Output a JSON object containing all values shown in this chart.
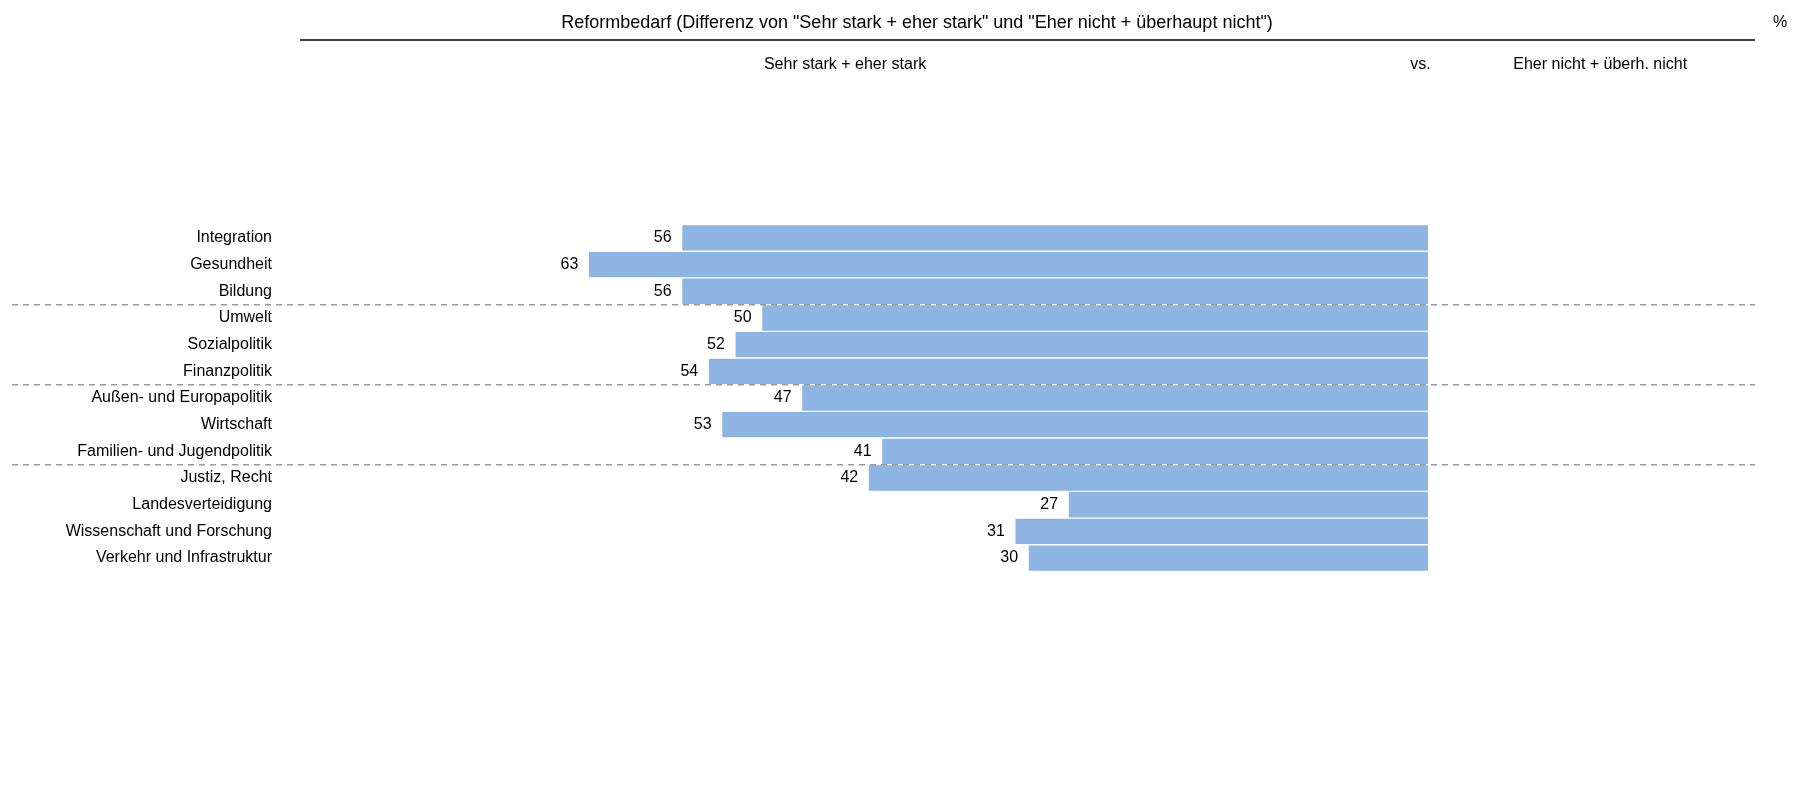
{
  "chart_data": {
    "type": "bar",
    "orientation": "horizontal",
    "title": "Reformbedarf (Differenz von \"Sehr stark + eher stark\" und \"Eher nicht + überhaupt nicht\")",
    "categories": [
      "Integration",
      "Gesundheit",
      "Bildung",
      "Umwelt",
      "Sozialpolitik",
      "Finanzpolitik",
      "Außen- und Europapolitik",
      "Wirtschaft",
      "Familien- und Jugendpolitik",
      "Justiz, Recht",
      "Landesverteidigung",
      "Wissenschaft und Forschung",
      "Verkehr und Infrastruktur"
    ],
    "values": [
      56,
      63,
      56,
      50,
      52,
      54,
      47,
      53,
      41,
      42,
      27,
      31,
      30
    ],
    "color": "#8eb4e3",
    "data_labels": true,
    "legend": false,
    "annotations": [
      "Sehr stark + eher stark",
      "vs.",
      "Eher nicht + überh. nicht",
      "%"
    ]
  }
}
